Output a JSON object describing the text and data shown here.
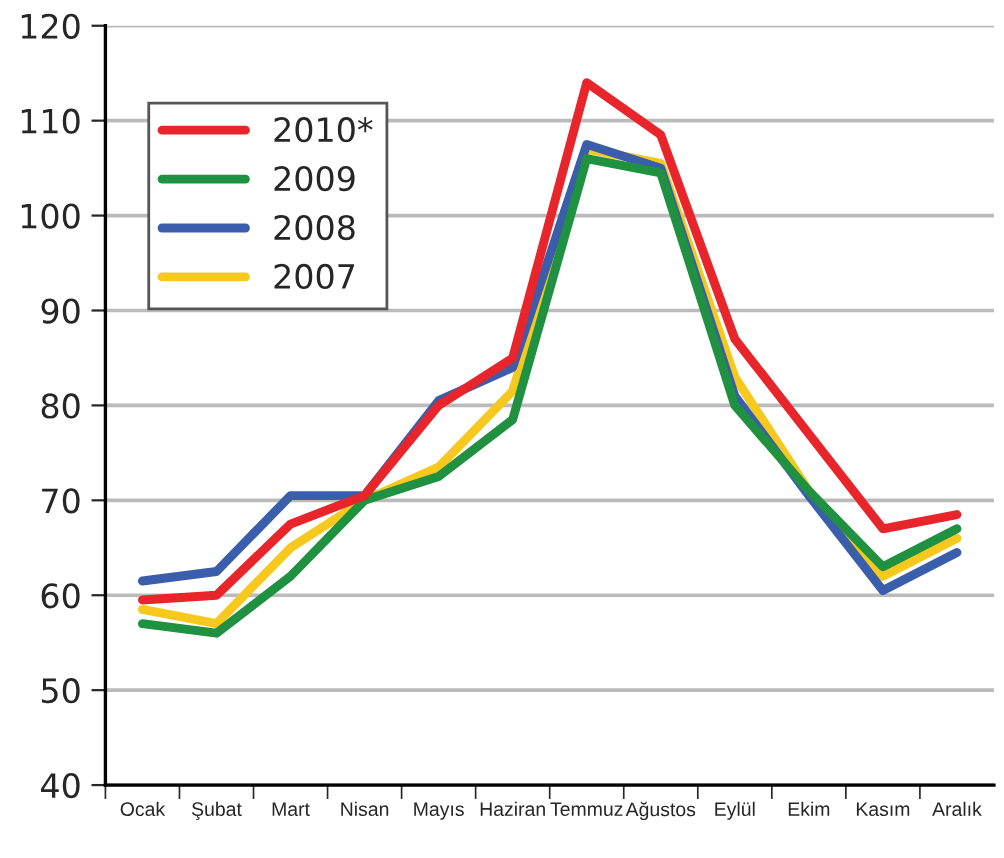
{
  "chart_data": {
    "type": "line",
    "categories": [
      "Ocak",
      "Şubat",
      "Mart",
      "Nisan",
      "Mayıs",
      "Haziran",
      "Temmuz",
      "Ağustos",
      "Eylül",
      "Ekim",
      "Kasım",
      "Aralık"
    ],
    "series": [
      {
        "name": "2010*",
        "color": "#e8252a",
        "values": [
          59.5,
          60,
          67.5,
          70.5,
          80,
          85,
          114,
          108.5,
          87,
          77,
          67,
          68.5
        ]
      },
      {
        "name": "2009",
        "color": "#1f9140",
        "values": [
          57,
          56,
          62,
          70,
          72.5,
          78.5,
          106,
          104.5,
          80,
          71,
          63,
          67
        ]
      },
      {
        "name": "2008",
        "color": "#3a5eac",
        "values": [
          61.5,
          62.5,
          70.5,
          70.5,
          80.5,
          84,
          107.5,
          105,
          81,
          70.5,
          60.5,
          64.5
        ]
      },
      {
        "name": "2007",
        "color": "#f7c81e",
        "values": [
          58.5,
          57,
          65,
          70,
          73.5,
          81.5,
          107,
          105.5,
          83,
          71,
          62,
          66
        ]
      }
    ],
    "ylim": [
      40,
      120
    ],
    "yticks": [
      40,
      50,
      60,
      70,
      80,
      90,
      100,
      110,
      120
    ],
    "grid": "y",
    "legend": "top left",
    "marker": "none",
    "line_style": "solid"
  }
}
